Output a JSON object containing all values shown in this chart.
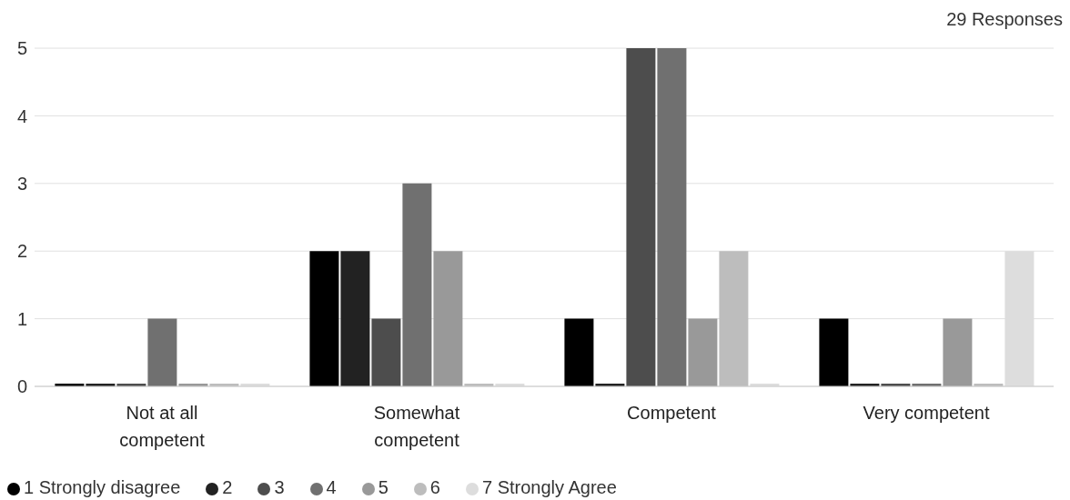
{
  "chart_data": {
    "type": "bar",
    "categories": [
      "Not at all competent",
      "Somewhat competent",
      "Competent",
      "Very competent"
    ],
    "series": [
      {
        "name": "1 Strongly disagree",
        "color": "#000000",
        "values": [
          0,
          2,
          1,
          1
        ]
      },
      {
        "name": "2",
        "color": "#222222",
        "values": [
          0,
          2,
          0,
          0
        ]
      },
      {
        "name": "3",
        "color": "#4d4d4d",
        "values": [
          0,
          1,
          5,
          0
        ]
      },
      {
        "name": "4",
        "color": "#707070",
        "values": [
          1,
          3,
          5,
          0
        ]
      },
      {
        "name": "5",
        "color": "#999999",
        "values": [
          0,
          2,
          1,
          1
        ]
      },
      {
        "name": "6",
        "color": "#bdbdbd",
        "values": [
          0,
          0,
          2,
          0
        ]
      },
      {
        "name": "7 Strongly Agree",
        "color": "#dddddd",
        "values": [
          0,
          0,
          0,
          2
        ]
      }
    ],
    "ylim": [
      0,
      5
    ],
    "yticks": [
      0,
      1,
      2,
      3,
      4,
      5
    ],
    "grid": "y",
    "legend": "bottom left",
    "annotations": [
      "29 Responses"
    ]
  }
}
